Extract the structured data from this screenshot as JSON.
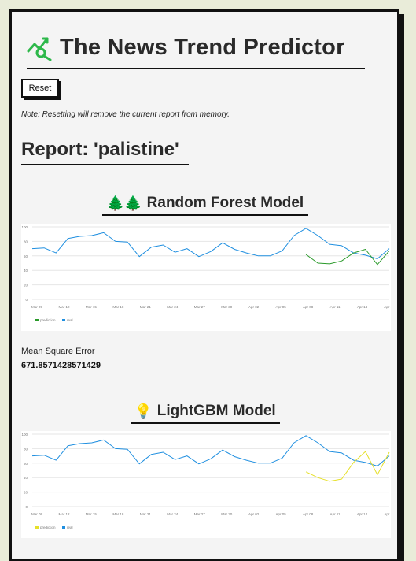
{
  "app": {
    "title": "The News Trend Predictor",
    "reset_label": "Reset",
    "note": "Note: Resetting will remove the current report from memory.",
    "report_title": "Report: 'palistine'"
  },
  "models": [
    {
      "name": "Random Forest Model",
      "emoji": "🌲🌲",
      "mse_label": "Mean Square Error",
      "mse_value": "671.8571428571429"
    },
    {
      "name": "LightGBM Model",
      "emoji": "💡"
    }
  ],
  "colors": {
    "actual": "#1f8fe0",
    "rf_pred": "#2a9a2a",
    "lgbm_pred": "#e6e02a"
  },
  "chart_data": [
    {
      "type": "line",
      "ylim": [
        0,
        100
      ],
      "yticks": [
        "100",
        "80",
        "60",
        "40",
        "20",
        "0"
      ],
      "xticks": [
        "Mar 09",
        "Mar 12",
        "Mar 15",
        "Mar 18",
        "Mar 21",
        "Mar 24",
        "Mar 27",
        "Mar 30",
        "Apr 02",
        "Apr 05",
        "Apr 08",
        "Apr 11",
        "Apr 14",
        "Apr 17"
      ],
      "legend": [
        "prediction",
        "real"
      ],
      "series": [
        {
          "name": "real",
          "color": "#1f8fe0",
          "values": [
            70,
            71,
            64,
            84,
            87,
            88,
            92,
            80,
            79,
            59,
            72,
            75,
            65,
            70,
            59,
            66,
            78,
            69,
            64,
            60,
            60,
            67,
            88,
            98,
            88,
            76,
            74,
            64,
            61,
            56,
            70
          ]
        },
        {
          "name": "prediction",
          "color": "#2a9a2a",
          "start": 23,
          "values": [
            62,
            50,
            49,
            53,
            64,
            69,
            48,
            67
          ]
        }
      ]
    },
    {
      "type": "line",
      "ylim": [
        0,
        100
      ],
      "yticks": [
        "100",
        "80",
        "60",
        "40",
        "20",
        "0"
      ],
      "xticks": [
        "Mar 09",
        "Mar 12",
        "Mar 15",
        "Mar 18",
        "Mar 21",
        "Mar 24",
        "Mar 27",
        "Mar 30",
        "Apr 02",
        "Apr 05",
        "Apr 08",
        "Apr 11",
        "Apr 14",
        "Apr 17"
      ],
      "legend": [
        "prediction",
        "real"
      ],
      "series": [
        {
          "name": "real",
          "color": "#1f8fe0",
          "values": [
            70,
            71,
            64,
            84,
            87,
            88,
            92,
            80,
            79,
            59,
            72,
            75,
            65,
            70,
            59,
            66,
            78,
            69,
            64,
            60,
            60,
            67,
            88,
            98,
            88,
            76,
            74,
            64,
            61,
            56,
            70
          ]
        },
        {
          "name": "prediction",
          "color": "#e6e02a",
          "start": 23,
          "values": [
            48,
            40,
            35,
            38,
            61,
            76,
            44,
            75
          ]
        }
      ]
    }
  ]
}
